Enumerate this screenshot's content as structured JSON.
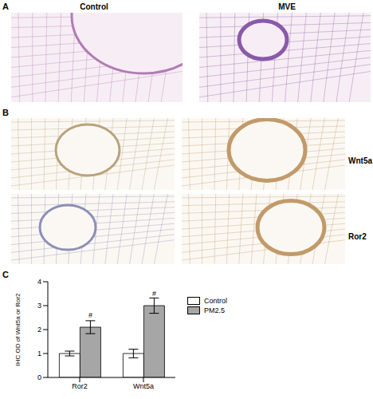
{
  "panel_labels": [
    "A",
    "B",
    "C"
  ],
  "panel_a": {
    "columns": [
      "Control",
      "MVE"
    ]
  },
  "panel_b": {
    "rows": [
      "Wnt5a",
      "Ror2"
    ]
  },
  "chart_data": {
    "type": "bar",
    "y_label": "IHC OD of Wnt5a or Ror2",
    "categories": [
      "Ror2",
      "Wnt5a"
    ],
    "series": [
      {
        "name": "Control",
        "color": "#ffffff",
        "values": [
          1.0,
          1.0
        ],
        "errors": [
          0.1,
          0.18
        ]
      },
      {
        "name": "PM2.5",
        "color": "#a6a6a6",
        "values": [
          2.1,
          3.0
        ],
        "errors": [
          0.27,
          0.32
        ]
      }
    ],
    "ylim": [
      0,
      4
    ],
    "yticks": [
      0,
      1,
      2,
      3,
      4
    ],
    "legend": "right",
    "annotations": [
      {
        "text": "#",
        "series": "PM2.5",
        "category": "Ror2"
      },
      {
        "text": "#",
        "series": "PM2.5",
        "category": "Wnt5a"
      }
    ]
  }
}
